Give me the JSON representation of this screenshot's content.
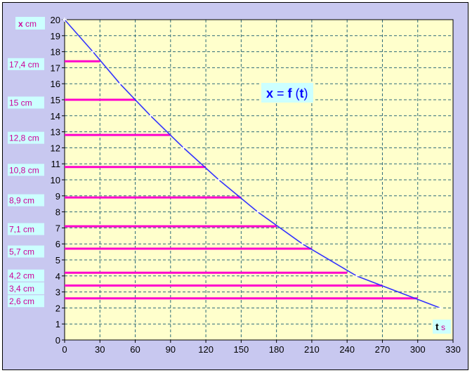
{
  "chart_data": {
    "type": "line",
    "title": "x = f (t)",
    "title_parts": {
      "x": "x",
      "eq": " = ",
      "f": "f",
      "open": " (",
      "t": "t",
      "close": ")"
    },
    "xlabel": {
      "bold": "t",
      "unit": " s"
    },
    "ylabel": {
      "bold": "x",
      "unit": " cm"
    },
    "xlim": [
      0,
      330
    ],
    "ylim": [
      0,
      20
    ],
    "xticks": [
      0,
      30,
      60,
      90,
      120,
      150,
      180,
      210,
      240,
      270,
      300,
      330
    ],
    "yticks": [
      0,
      1,
      2,
      3,
      4,
      5,
      6,
      7,
      8,
      9,
      10,
      11,
      12,
      13,
      14,
      15,
      16,
      17,
      18,
      19,
      20
    ],
    "grid": true,
    "series": [
      {
        "points": [
          {
            "x": 0,
            "y": 20
          },
          {
            "x": 24,
            "y": 18
          },
          {
            "x": 47,
            "y": 16
          },
          {
            "x": 73,
            "y": 14
          },
          {
            "x": 101,
            "y": 12
          },
          {
            "x": 131,
            "y": 10
          },
          {
            "x": 164,
            "y": 8
          },
          {
            "x": 202,
            "y": 6
          },
          {
            "x": 248,
            "y": 4
          },
          {
            "x": 319,
            "y": 2
          }
        ]
      }
    ],
    "markers": [
      {
        "label": "17,4 cm",
        "y": 17.4,
        "x_end": 30
      },
      {
        "label": "15 cm",
        "y": 15,
        "x_end": 60
      },
      {
        "label": "12,8 cm",
        "y": 12.8,
        "x_end": 90
      },
      {
        "label": "10,8 cm",
        "y": 10.8,
        "x_end": 120
      },
      {
        "label": "8,9 cm",
        "y": 8.9,
        "x_end": 150
      },
      {
        "label": "7,1 cm",
        "y": 7.1,
        "x_end": 180
      },
      {
        "label": "5,7 cm",
        "y": 5.7,
        "x_end": 210
      },
      {
        "label": "4,2 cm",
        "y": 4.2,
        "x_end": 240
      },
      {
        "label": "3,4 cm",
        "y": 3.4,
        "x_end": 270
      },
      {
        "label": "2,6 cm",
        "y": 2.6,
        "x_end": 300
      }
    ],
    "colors": {
      "outer_background": "#c8c8f0",
      "plot_background": "#ffffcc",
      "grid": "#2d6a78",
      "curve": "#3333ff",
      "marker_line": "#ff00cc",
      "label_text": "#cc0099",
      "label_box": "#ccffff",
      "title_text": "#0000ff",
      "title_box": "#ccffff"
    }
  }
}
